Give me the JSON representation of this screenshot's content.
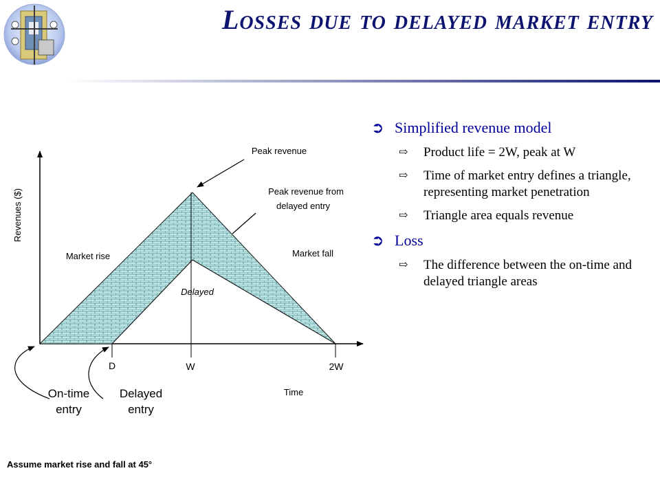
{
  "slide": {
    "title": "Losses due to delayed market entry",
    "footnote": "Assume market rise and fall at 45°"
  },
  "colors": {
    "title": "#0c1470",
    "bullet_level1": "#000099",
    "triangle_fill": "#bfe8e6",
    "triangle_pattern": "#1d5f6a"
  },
  "bullets": [
    {
      "label": "Simplified revenue model",
      "subitems": [
        "Product life = 2W, peak at W",
        "Time of market entry defines a triangle, representing market penetration",
        "Triangle area equals revenue"
      ]
    },
    {
      "label": "Loss",
      "subitems": [
        "The difference between the on-time and delayed triangle areas"
      ]
    }
  ],
  "diagram": {
    "y_axis_label": "Revenues ($)",
    "x_axis_label": "Time",
    "tick_labels": {
      "d": "D",
      "w": "W",
      "two_w": "2W"
    },
    "labels": {
      "peak_revenue": "Peak revenue",
      "peak_delayed_line1": "Peak revenue from",
      "peak_delayed_line2": "delayed entry",
      "market_rise": "Market rise",
      "market_fall": "Market fall",
      "delayed": "Delayed",
      "ontime_line1": "On-time",
      "ontime_line2": "entry",
      "delayed_entry_line1": "Delayed",
      "delayed_entry_line2": "entry"
    }
  }
}
